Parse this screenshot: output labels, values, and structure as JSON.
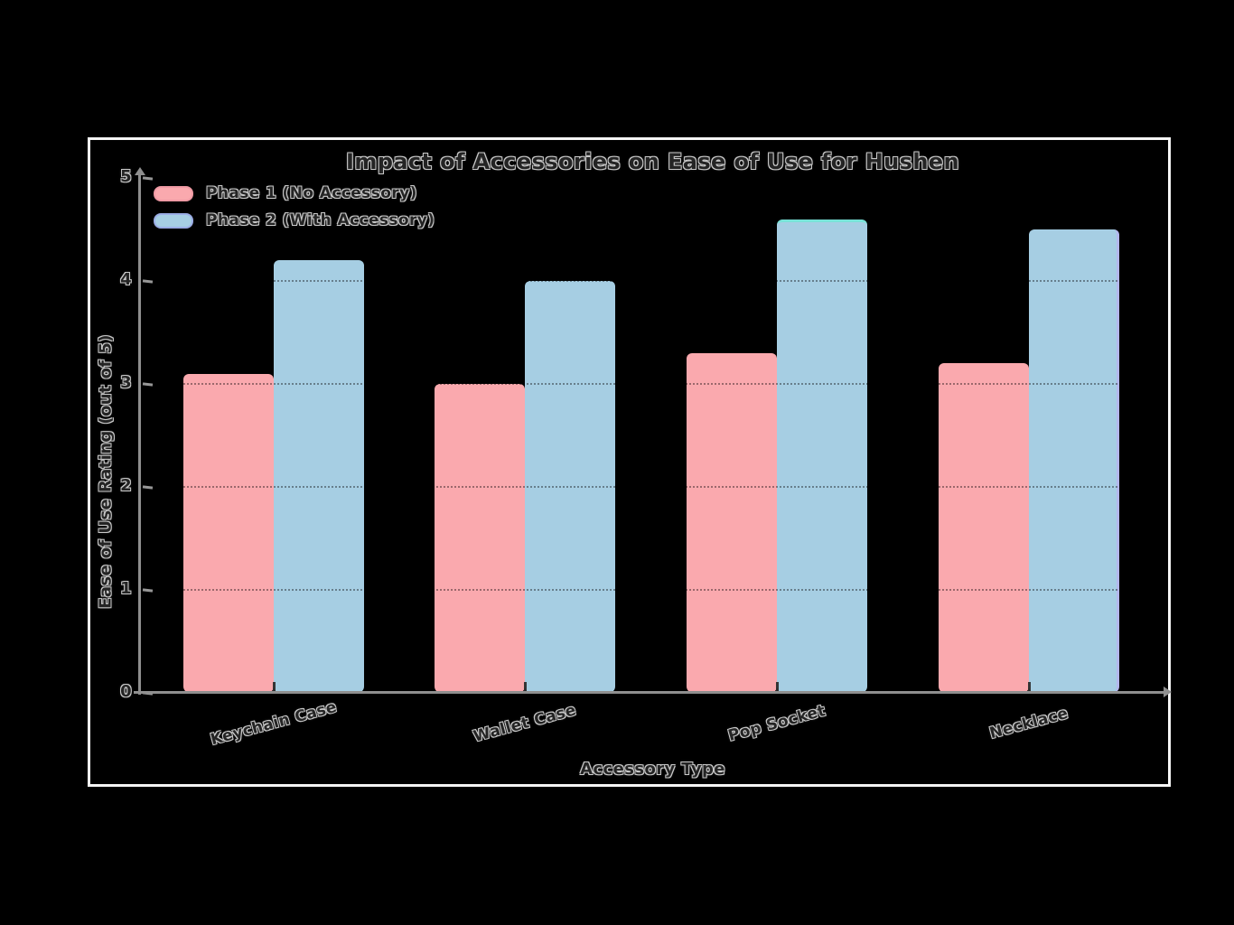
{
  "figure": {
    "background": "#000000",
    "frame_color": "#F5F5F5",
    "axis_color": "#8F8F8F"
  },
  "chart_data": {
    "type": "bar",
    "title": "Impact of Accessories on Ease of Use for Hushen",
    "xlabel": "Accessory Type",
    "ylabel": "Ease of Use Rating (out of 5)",
    "categories": [
      "Keychain Case",
      "Wallet Case",
      "Pop Socket",
      "Necklace"
    ],
    "series": [
      {
        "name": "Phase 1 (No Accessory)",
        "color": "#FAA9AE",
        "edge_color": "#EF9AA4",
        "values": [
          3.1,
          3.0,
          3.3,
          3.2
        ]
      },
      {
        "name": "Phase 2 (With Accessory)",
        "color": "#A6CEE3",
        "edge_color": "#9BADE6",
        "values": [
          4.2,
          4.0,
          4.6,
          4.5
        ]
      }
    ],
    "ylim": [
      0,
      5
    ],
    "yticks": [
      0,
      1,
      2,
      3,
      4,
      5
    ],
    "grid": "horizontal dotted lines at integer ticks",
    "legend_position": "upper left",
    "bar_edge_accents": [
      {
        "category": "Pop Socket",
        "series": "Phase 2 (With Accessory)",
        "edge": "top",
        "color": "#79E2D8"
      },
      {
        "category": "Necklace",
        "series": "Phase 2 (With Accessory)",
        "edge": "right",
        "color": "#B3B8EE"
      }
    ],
    "text_style": "dark fill with light outline (sketch look) on black background"
  }
}
